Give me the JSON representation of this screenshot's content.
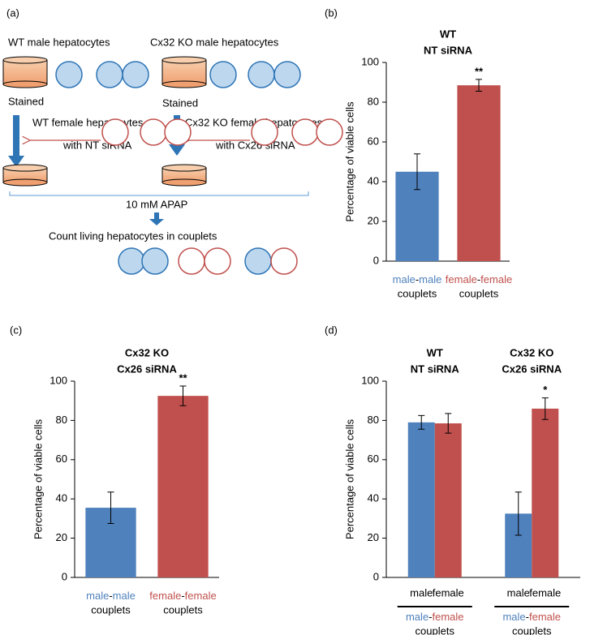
{
  "diagram": {
    "label": "(a)",
    "texts": [
      "WT male hepatocytes",
      "Cx32 KO male hepatocytes",
      "Stained",
      "Stained",
      "WT female hepatocytes",
      "with NT siRNA",
      "Cx32 KO female hepatocytes",
      "with Cx26  siRNA",
      "10 mM APAP",
      "Count living hepatocytes in couplets"
    ]
  },
  "chart_data": [
    {
      "type": "bar",
      "panel_label": "(b)",
      "title": "WT",
      "subtitle": "NT siRNA",
      "y_label": "Percentage of viable cells",
      "categories": [
        [
          "male",
          "-",
          "male",
          "couplets"
        ],
        [
          "female",
          "-",
          "female",
          "couplets"
        ]
      ],
      "values": [
        45,
        88.5
      ],
      "errors": [
        9,
        3
      ],
      "significance": [
        null,
        "**"
      ],
      "colors": [
        "#4f81bd",
        "#c0504d"
      ],
      "ylim": [
        0,
        100
      ],
      "yticks": [
        0,
        20,
        40,
        60,
        80,
        100
      ]
    },
    {
      "type": "bar",
      "panel_label": "(c)",
      "title": "Cx32 KO",
      "subtitle": "Cx26 siRNA",
      "y_label": "Percentage of viable cells",
      "categories": [
        [
          "male",
          "-",
          "male",
          "couplets"
        ],
        [
          "female",
          "-",
          "female",
          "couplets"
        ]
      ],
      "values": [
        35.5,
        92.5
      ],
      "errors": [
        8,
        5
      ],
      "significance": [
        null,
        "**"
      ],
      "colors": [
        "#4f81bd",
        "#c0504d"
      ],
      "ylim": [
        0,
        100
      ],
      "yticks": [
        0,
        20,
        40,
        60,
        80,
        100
      ]
    },
    {
      "type": "grouped-bar",
      "panel_label": "(d)",
      "y_label": "Percentage of viable cells",
      "group_titles": [
        [
          "WT",
          "NT siRNA"
        ],
        [
          "Cx32 KO",
          "Cx26 siRNA"
        ]
      ],
      "categories": [
        [
          "male",
          "-",
          "female",
          "couplets"
        ],
        [
          "male",
          "-",
          "female",
          "couplets"
        ]
      ],
      "series": [
        {
          "name": "male",
          "color": "#4f81bd",
          "values": [
            79,
            32.5
          ],
          "errors": [
            3.5,
            11
          ],
          "significance": [
            null,
            null
          ]
        },
        {
          "name": "female",
          "color": "#c0504d",
          "values": [
            78.5,
            86
          ],
          "errors": [
            5,
            5.5
          ],
          "significance": [
            null,
            "*"
          ]
        }
      ],
      "ylim": [
        0,
        100
      ],
      "yticks": [
        0,
        20,
        40,
        60,
        80,
        100
      ]
    }
  ]
}
